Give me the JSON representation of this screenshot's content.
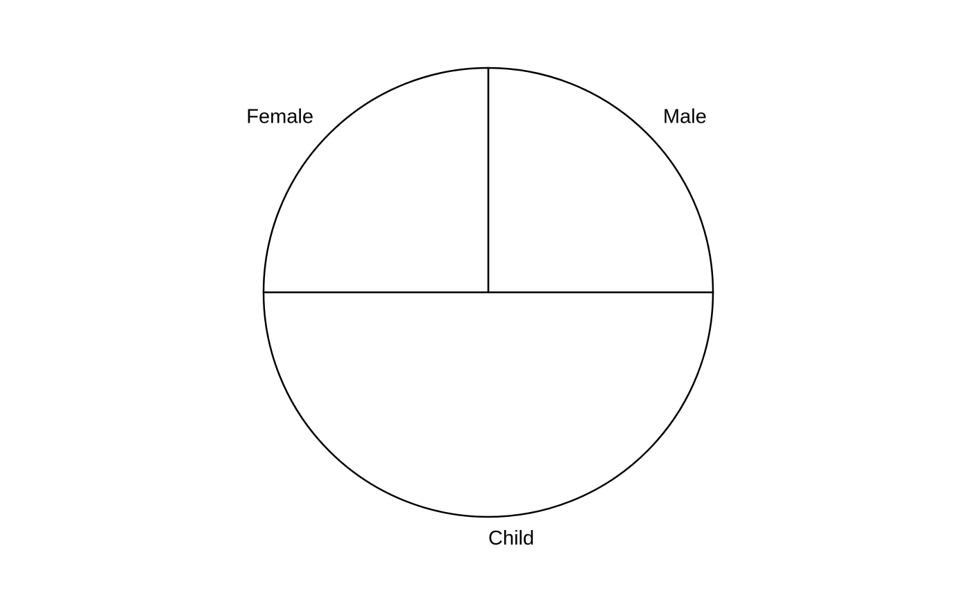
{
  "chart_data": {
    "type": "pie",
    "categories": [
      "Male",
      "Female",
      "Child"
    ],
    "values": [
      25,
      25,
      50
    ],
    "colors": [
      "#ffffff",
      "#ffffff",
      "#ffffff"
    ],
    "outline_color": "#000000",
    "title": "",
    "legend": "none"
  }
}
